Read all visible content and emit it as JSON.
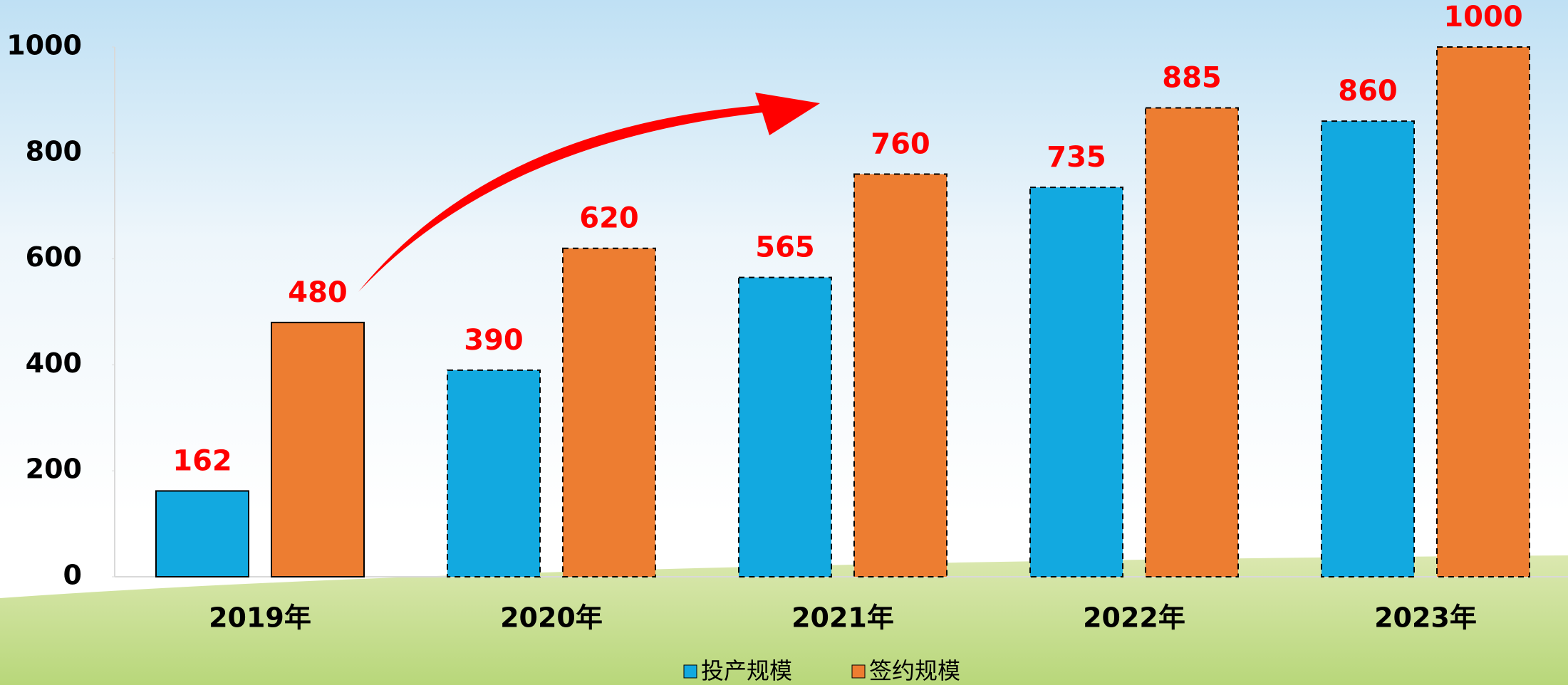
{
  "chart_data": {
    "type": "bar",
    "categories": [
      "2019年",
      "2020年",
      "2021年",
      "2022年",
      "2023年"
    ],
    "series": [
      {
        "name": "投产规模",
        "color": "#12a9e0",
        "values": [
          162,
          390,
          565,
          735,
          860
        ]
      },
      {
        "name": "签约规模",
        "color": "#ed7d31",
        "values": [
          480,
          620,
          760,
          885,
          1000
        ]
      }
    ],
    "ylim": [
      0,
      1000
    ],
    "yticks": [
      0,
      200,
      400,
      600,
      800,
      1000
    ],
    "value_label_color": "#ff0000",
    "legend": "bottom"
  }
}
